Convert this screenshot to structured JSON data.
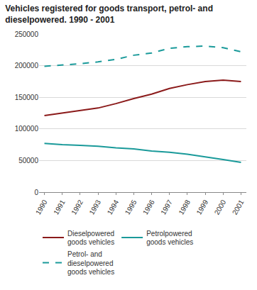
{
  "chart_data": {
    "type": "line",
    "title": "Vehicles registered for goods transport, petrol- and dieselpowered. 1990 - 2001",
    "x": [
      1990,
      1991,
      1992,
      1993,
      1994,
      1995,
      1996,
      1997,
      1998,
      1999,
      2000,
      2001
    ],
    "series": [
      {
        "name": "Dieselpowered goods vehicles",
        "color": "#8b1a1a",
        "line_style": "solid",
        "values": [
          121000,
          125000,
          129000,
          133000,
          140000,
          148000,
          155000,
          164000,
          170000,
          175000,
          177000,
          175000
        ]
      },
      {
        "name": "Petrolpowered goods vehicles",
        "color": "#1a9a9a",
        "line_style": "solid",
        "values": [
          77000,
          75000,
          74000,
          72500,
          70000,
          68500,
          65000,
          63000,
          60000,
          56000,
          51500,
          47000
        ]
      },
      {
        "name": "Petrol- and dieselpowered goods vehicles",
        "color": "#1a9a9a",
        "line_style": "dash",
        "values": [
          199000,
          201000,
          203000,
          206000,
          210000,
          216500,
          220000,
          227500,
          230000,
          231000,
          228500,
          222000
        ]
      }
    ],
    "xlim": [
      1989.7,
      2001.3
    ],
    "xticks": [
      1990,
      1991,
      1992,
      1993,
      1994,
      1995,
      1996,
      1997,
      1998,
      1999,
      2000,
      2001
    ],
    "ylim": [
      0,
      250000
    ],
    "yticks": [
      0,
      50000,
      100000,
      150000,
      200000,
      250000
    ],
    "grid": true,
    "legend": "bottom"
  }
}
